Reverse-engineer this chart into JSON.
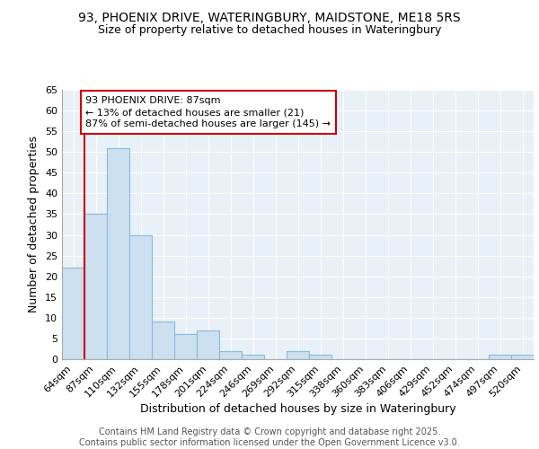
{
  "title_line1": "93, PHOENIX DRIVE, WATERINGBURY, MAIDSTONE, ME18 5RS",
  "title_line2": "Size of property relative to detached houses in Wateringbury",
  "xlabel": "Distribution of detached houses by size in Wateringbury",
  "ylabel": "Number of detached properties",
  "categories": [
    "64sqm",
    "87sqm",
    "110sqm",
    "132sqm",
    "155sqm",
    "178sqm",
    "201sqm",
    "224sqm",
    "246sqm",
    "269sqm",
    "292sqm",
    "315sqm",
    "338sqm",
    "360sqm",
    "383sqm",
    "406sqm",
    "429sqm",
    "452sqm",
    "474sqm",
    "497sqm",
    "520sqm"
  ],
  "values": [
    22,
    35,
    51,
    30,
    9,
    6,
    7,
    2,
    1,
    0,
    2,
    1,
    0,
    0,
    0,
    0,
    0,
    0,
    0,
    1,
    1
  ],
  "bar_color": "#cce0f0",
  "bar_edge_color": "#88bbdd",
  "highlight_index": 1,
  "highlight_line_color": "#cc0000",
  "annotation_text": "93 PHOENIX DRIVE: 87sqm\n← 13% of detached houses are smaller (21)\n87% of semi-detached houses are larger (145) →",
  "annotation_box_color": "#ffffff",
  "annotation_box_edge_color": "#cc0000",
  "ylim": [
    0,
    65
  ],
  "yticks": [
    0,
    5,
    10,
    15,
    20,
    25,
    30,
    35,
    40,
    45,
    50,
    55,
    60,
    65
  ],
  "footer_text": "Contains HM Land Registry data © Crown copyright and database right 2025.\nContains public sector information licensed under the Open Government Licence v3.0.",
  "plot_bg_color": "#e8f0f8",
  "fig_bg_color": "#ffffff",
  "grid_color": "#ffffff",
  "title_fontsize": 10,
  "subtitle_fontsize": 9,
  "axis_label_fontsize": 9,
  "tick_fontsize": 8,
  "annotation_fontsize": 8,
  "footer_fontsize": 7
}
